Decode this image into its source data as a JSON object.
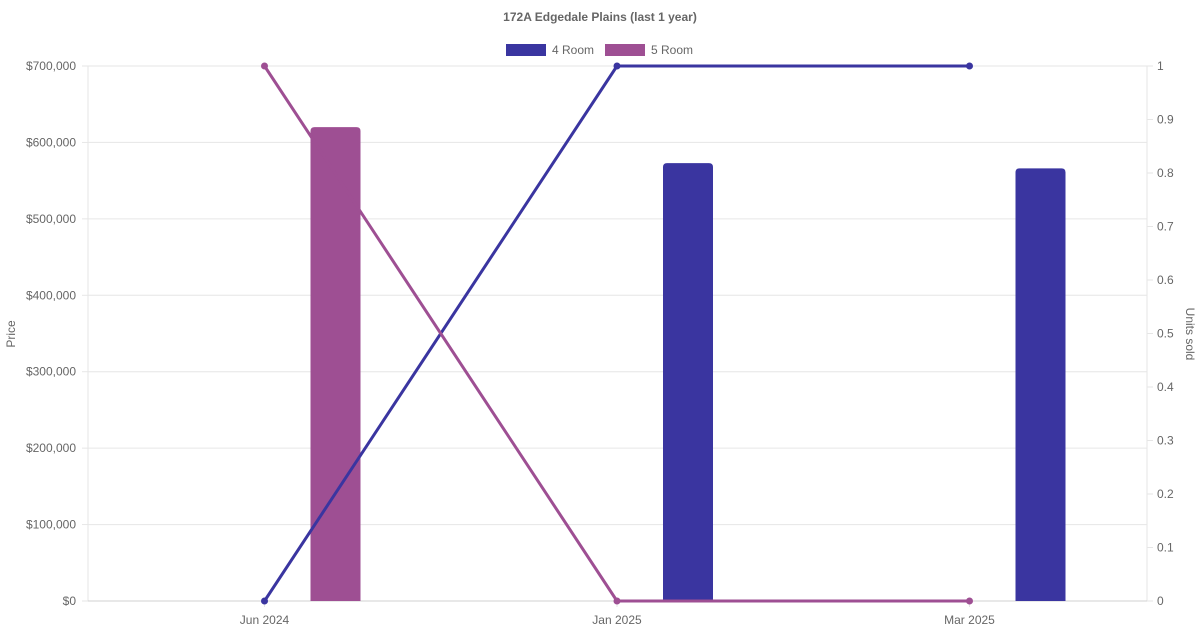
{
  "chart_data": {
    "type": "bar",
    "title": "172A Edgedale  Plains (last 1 year)",
    "categories": [
      "Jun 2024",
      "Jan 2025",
      "Mar 2025"
    ],
    "ylabel": "Price",
    "y2label": "Units sold",
    "ylim": [
      0,
      700000
    ],
    "y2lim": [
      0,
      1
    ],
    "y_ticks": [
      "$0",
      "$100,000",
      "$200,000",
      "$300,000",
      "$400,000",
      "$500,000",
      "$600,000",
      "$700,000"
    ],
    "y2_ticks": [
      "0",
      "0.1",
      "0.2",
      "0.3",
      "0.4",
      "0.5",
      "0.6",
      "0.7",
      "0.8",
      "0.9",
      "1"
    ],
    "legend_position": "top",
    "grid": true,
    "series": [
      {
        "name": "4 Room",
        "color": "#3a35a0",
        "price": [
          null,
          573000,
          566000
        ],
        "units": [
          0,
          1,
          1
        ]
      },
      {
        "name": "5 Room",
        "color": "#9e4f93",
        "price": [
          620000,
          null,
          null
        ],
        "units": [
          1,
          0,
          0
        ]
      }
    ]
  }
}
